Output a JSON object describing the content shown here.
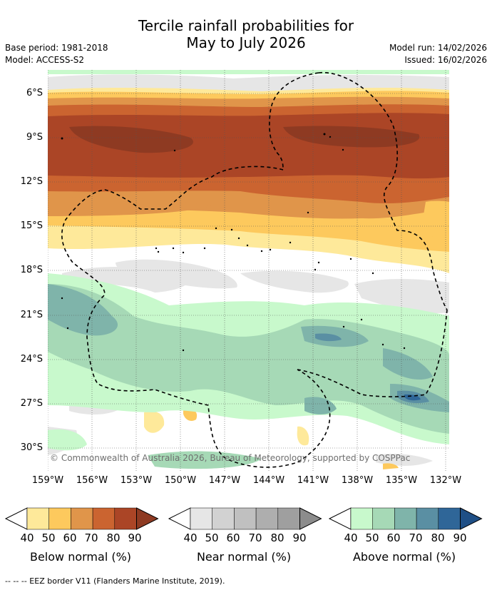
{
  "header": {
    "title_line1": "Tercile rainfall probabilities for",
    "title_line2": "May to July 2026",
    "base_period": "Base period: 1981-2018",
    "model": "Model: ACCESS-S2",
    "model_run": "Model run: 14/02/2026",
    "issued": "Issued: 16/02/2026"
  },
  "map": {
    "copyright": "© Commonwealth of Australia 2026, Bureau of Meteorology, supported by COSPPac",
    "lat_labels": [
      "6°S",
      "9°S",
      "12°S",
      "15°S",
      "18°S",
      "21°S",
      "24°S",
      "27°S",
      "30°S"
    ],
    "lon_labels": [
      "159°W",
      "156°W",
      "153°W",
      "150°W",
      "147°W",
      "144°W",
      "141°W",
      "138°W",
      "135°W",
      "132°W"
    ]
  },
  "legend": {
    "bars": [
      {
        "label": "Below normal (%)",
        "ticks": [
          "40",
          "50",
          "60",
          "70",
          "80",
          "90"
        ],
        "colors": [
          "#fee99a",
          "#fdc95d",
          "#e0954a",
          "#cb6430",
          "#ab4526",
          "#8e3a22"
        ]
      },
      {
        "label": "Near normal (%)",
        "ticks": [
          "40",
          "50",
          "60",
          "70",
          "80",
          "90"
        ],
        "colors": [
          "#e6e6e6",
          "#d2d2d2",
          "#c0c0c0",
          "#aeaeae",
          "#9f9f9f",
          "#8c8c8c"
        ]
      },
      {
        "label": "Above normal (%)",
        "ticks": [
          "40",
          "50",
          "60",
          "70",
          "80",
          "90"
        ],
        "colors": [
          "#c8f9cc",
          "#a6d9b6",
          "#7fb4aa",
          "#5a8fa3",
          "#2f6698",
          "#1f4f86"
        ]
      }
    ]
  },
  "footer": {
    "eez_note": "--  --  -- EEZ border V11 (Flanders Marine Institute, 2019)."
  }
}
